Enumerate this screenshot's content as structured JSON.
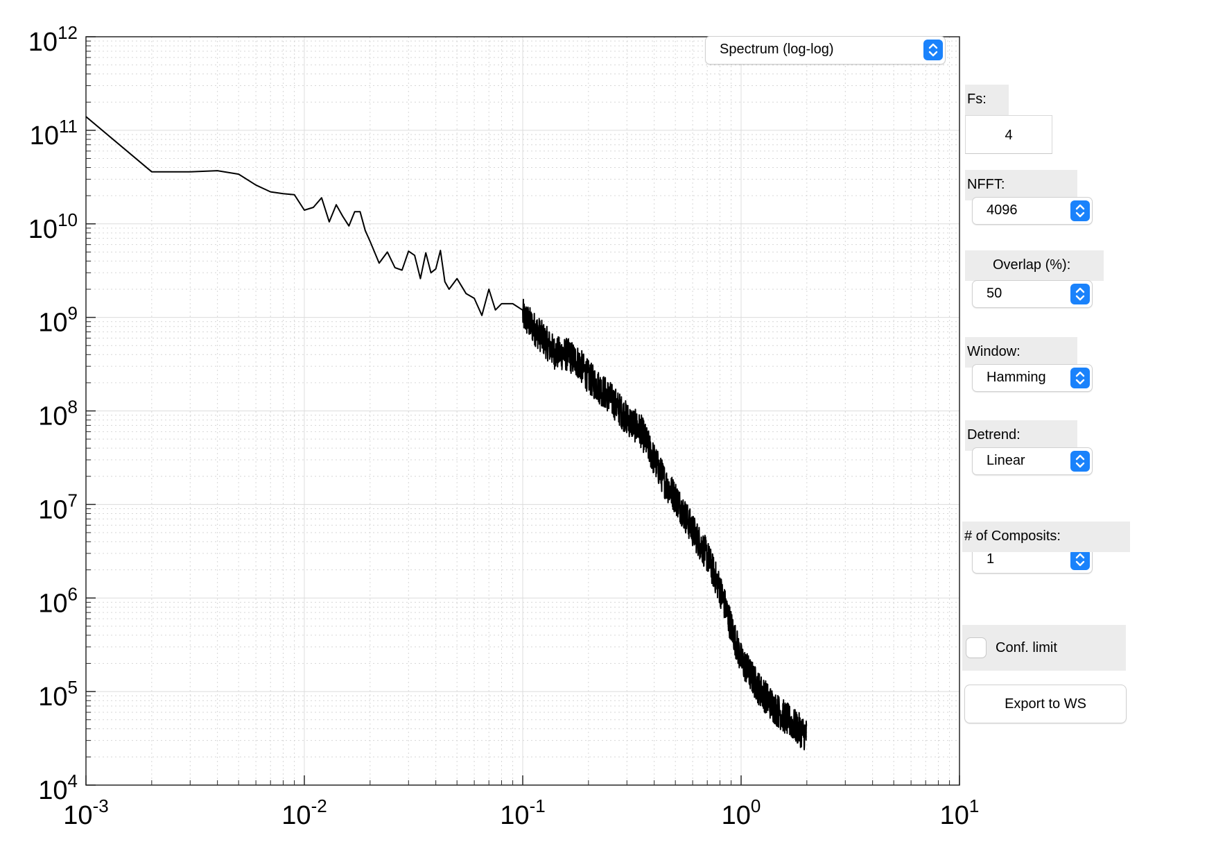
{
  "chart_data": {
    "type": "line",
    "xscale": "log",
    "yscale": "log",
    "xlim": [
      0.001,
      10
    ],
    "ylim": [
      10000,
      1000000000000
    ],
    "grid": "major-and-minor",
    "x_tick_labels": [
      "10-3",
      "10-2",
      "10-1",
      "100",
      "101"
    ],
    "y_tick_labels": [
      "104",
      "105",
      "106",
      "107",
      "108",
      "109",
      "1010",
      "1011",
      "1012"
    ],
    "line_color": "#000000",
    "series": [
      {
        "x": [
          0.001,
          0.002,
          0.003,
          0.004,
          0.005,
          0.006,
          0.007,
          0.008,
          0.009,
          0.01,
          0.011,
          0.012,
          0.013,
          0.014,
          0.015,
          0.016,
          0.017,
          0.018,
          0.019,
          0.02,
          0.022,
          0.024,
          0.026,
          0.028,
          0.03,
          0.032,
          0.034,
          0.036,
          0.038,
          0.04,
          0.042,
          0.044,
          0.046,
          0.05,
          0.055,
          0.06,
          0.065,
          0.07,
          0.075,
          0.08,
          0.09,
          0.1,
          0.12,
          0.14,
          0.16,
          0.18,
          0.2,
          0.25,
          0.3,
          0.35,
          0.4,
          0.45,
          0.5,
          0.6,
          0.7,
          0.8,
          0.9,
          1.0,
          1.2,
          1.4,
          1.6,
          1.8,
          2.0
        ],
        "y": [
          140000000000,
          36000000000,
          36000000000,
          37000000000,
          34000000000,
          26000000000,
          22000000000,
          21000000000,
          20500000000,
          14000000000,
          15000000000,
          19000000000,
          10500000000,
          16000000000,
          12000000000,
          9500000000,
          13500000000,
          13500000000,
          8500000000,
          6500000000,
          3800000000,
          5000000000,
          3400000000,
          3200000000,
          5100000000,
          4600000000,
          2600000000,
          4900000000,
          3000000000,
          3300000000,
          5200000000,
          2400000000,
          2000000000,
          2600000000,
          1800000000,
          1600000000,
          1050000000,
          2000000000,
          1200000000,
          1400000000,
          1400000000,
          1050000000,
          650000000,
          420000000,
          400000000,
          330000000,
          230000000,
          140000000,
          83000000,
          60000000,
          30000000,
          17000000,
          12000000,
          5300000,
          2800000,
          1250000,
          500000,
          220000,
          110000,
          70000,
          52000,
          41000,
          34000
        ]
      }
    ]
  },
  "controls": {
    "plot_type": {
      "value": "Spectrum (log-log)"
    },
    "fs": {
      "label": "Fs:",
      "value": "4"
    },
    "nfft": {
      "label": "NFFT:",
      "value": "4096"
    },
    "overlap": {
      "label": "Overlap (%):",
      "value": "50"
    },
    "window": {
      "label": "Window:",
      "value": "Hamming"
    },
    "detrend": {
      "label": "Detrend:",
      "value": "Linear"
    },
    "composites": {
      "label": "# of Composits:",
      "value": "1"
    },
    "conf_limit": {
      "label": "Conf. limit",
      "checked": false
    },
    "export": {
      "label": "Export  to WS"
    }
  },
  "icons": {
    "stepper": "up-down-chevron-icon",
    "stepper_color": "#1a82fb"
  }
}
